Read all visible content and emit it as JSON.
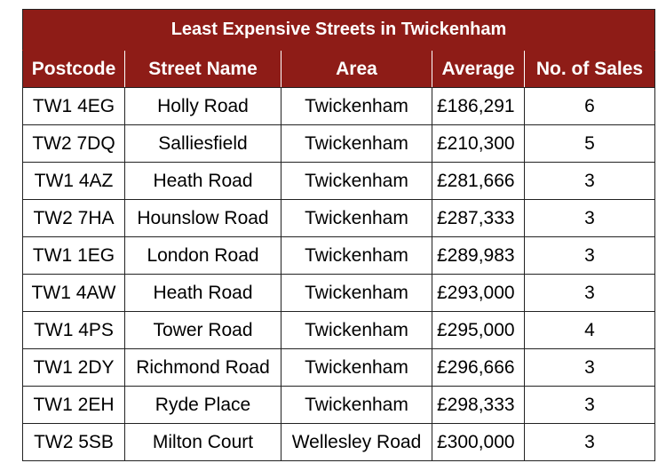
{
  "table": {
    "title": "Least Expensive Streets in Twickenham",
    "headers": [
      "Postcode",
      "Street Name",
      "Area",
      "Average",
      "No. of Sales"
    ],
    "rows": [
      [
        "TW1 4EG",
        "Holly Road",
        "Twickenham",
        "£186,291",
        "6"
      ],
      [
        "TW2 7DQ",
        "Salliesfield",
        "Twickenham",
        "£210,300",
        "5"
      ],
      [
        "TW1 4AZ",
        "Heath Road",
        "Twickenham",
        "£281,666",
        "3"
      ],
      [
        "TW2 7HA",
        "Hounslow Road",
        "Twickenham",
        "£287,333",
        "3"
      ],
      [
        "TW1 1EG",
        "London Road",
        "Twickenham",
        "£289,983",
        "3"
      ],
      [
        "TW1 4AW",
        "Heath Road",
        "Twickenham",
        "£293,000",
        "3"
      ],
      [
        "TW1 4PS",
        "Tower Road",
        "Twickenham",
        "£295,000",
        "4"
      ],
      [
        "TW1 2DY",
        "Richmond Road",
        "Twickenham",
        "£296,666",
        "3"
      ],
      [
        "TW1 2EH",
        "Ryde Place",
        "Twickenham",
        "£298,333",
        "3"
      ],
      [
        "TW2 5SB",
        "Milton Court",
        "Wellesley Road",
        "£300,000",
        "3"
      ]
    ],
    "colors": {
      "header_bg": "#8e1c17",
      "header_text": "#ffffff"
    }
  }
}
